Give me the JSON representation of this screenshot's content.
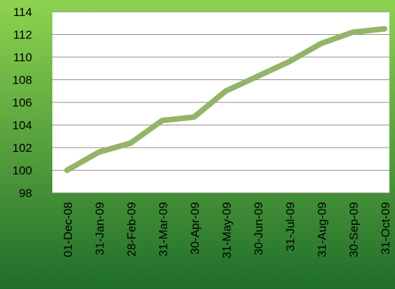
{
  "colors": {
    "background_top": "#8ed34f",
    "background_bottom": "#1f6e2a",
    "plot_area": "#ffffff",
    "gridline": "#8c8c8c",
    "series_line": "#94b468",
    "axis_text": "#000000"
  },
  "chart_data": {
    "type": "line",
    "title": "",
    "xlabel": "",
    "ylabel": "",
    "grid": true,
    "legend": "none",
    "ylim": [
      98,
      114
    ],
    "yticks": [
      "98",
      "100",
      "102",
      "104",
      "106",
      "108",
      "110",
      "112",
      "114"
    ],
    "categories": [
      "01-Dec-08",
      "31-Jan-09",
      "28-Feb-09",
      "31-Mar-09",
      "30-Apr-09",
      "31-May-09",
      "30-Jun-09",
      "31-Jul-09",
      "31-Aug-09",
      "30-Sep-09",
      "31-Oct-09"
    ],
    "series": [
      {
        "values": [
          100.0,
          101.6,
          102.4,
          104.4,
          104.7,
          107.0,
          108.3,
          109.6,
          111.2,
          112.2,
          112.5
        ]
      }
    ]
  }
}
